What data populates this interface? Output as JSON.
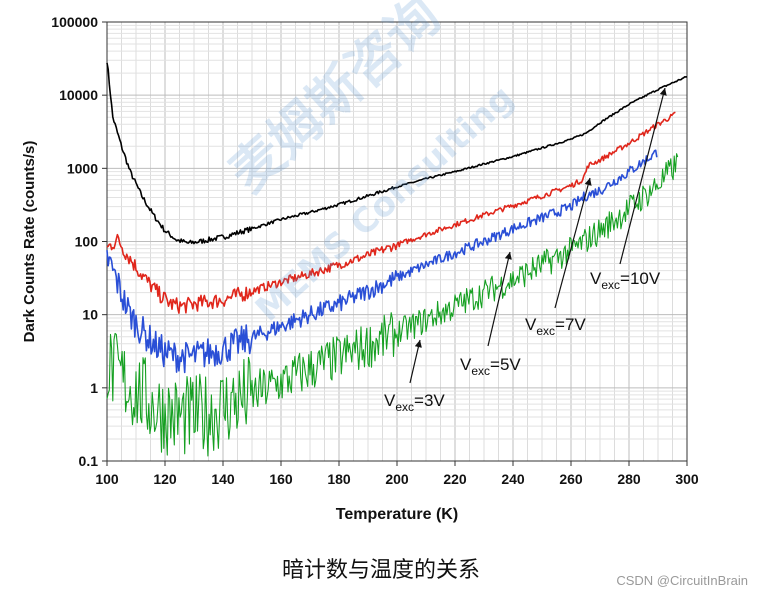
{
  "chart_data": {
    "type": "line",
    "title": "",
    "xlabel": "Temperature (K)",
    "ylabel": "Dark Counts Rate (counts/s)",
    "xlim": [
      100,
      300
    ],
    "ylim": [
      0.1,
      100000
    ],
    "yscale": "log",
    "grid": true,
    "x_ticks": [
      "100",
      "120",
      "140",
      "160",
      "180",
      "200",
      "220",
      "240",
      "260",
      "280",
      "300"
    ],
    "y_ticks": [
      "0.1",
      "1",
      "10",
      "100",
      "1000",
      "10000",
      "100000"
    ],
    "series": [
      {
        "name": "Vexc=10V",
        "color": "#000000",
        "x": [
          100,
          102,
          105,
          108,
          112,
          116,
          120,
          124,
          128,
          132,
          140,
          150,
          160,
          170,
          180,
          190,
          200,
          210,
          220,
          230,
          240,
          250,
          260,
          265,
          270,
          280,
          290,
          300
        ],
        "y": [
          30000,
          5000,
          2000,
          900,
          420,
          230,
          140,
          105,
          95,
          100,
          115,
          150,
          200,
          250,
          320,
          420,
          560,
          720,
          900,
          1150,
          1450,
          1900,
          2500,
          3000,
          4200,
          7500,
          12000,
          18000
        ]
      },
      {
        "name": "Vexc=7V",
        "color": "#e0261b",
        "x": [
          100,
          102,
          104,
          106,
          110,
          114,
          118,
          122,
          126,
          130,
          140,
          150,
          160,
          170,
          180,
          190,
          200,
          210,
          220,
          230,
          240,
          250,
          260,
          264,
          266,
          270,
          280,
          290,
          296
        ],
        "y": [
          80,
          95,
          105,
          75,
          45,
          28,
          19,
          14,
          13,
          14,
          16,
          21,
          28,
          36,
          48,
          65,
          90,
          125,
          170,
          230,
          310,
          420,
          580,
          700,
          1100,
          1300,
          2200,
          4000,
          5500
        ]
      },
      {
        "name": "Vexc=5V",
        "color": "#2a4fd6",
        "x": [
          100,
          102,
          104,
          106,
          108,
          112,
          116,
          120,
          124,
          128,
          132,
          140,
          150,
          160,
          170,
          180,
          190,
          200,
          210,
          220,
          230,
          240,
          250,
          260,
          265,
          270,
          280,
          290
        ],
        "y": [
          60,
          40,
          25,
          15,
          10,
          6,
          4,
          3,
          2.7,
          2.6,
          2.8,
          3.4,
          4.8,
          7,
          10,
          14,
          21,
          32,
          48,
          70,
          100,
          150,
          210,
          300,
          420,
          500,
          900,
          1700
        ]
      },
      {
        "name": "Vexc=3V",
        "color": "#16a022",
        "x": [
          100,
          104,
          108,
          112,
          116,
          120,
          124,
          128,
          132,
          136,
          140,
          150,
          160,
          170,
          180,
          190,
          200,
          210,
          220,
          230,
          240,
          250,
          260,
          270,
          280,
          290,
          297
        ],
        "y": [
          2,
          1.5,
          1,
          0.8,
          0.55,
          0.45,
          0.4,
          0.4,
          0.42,
          0.45,
          0.55,
          0.8,
          1.2,
          1.8,
          2.6,
          3.8,
          5.6,
          8.5,
          13,
          20,
          30,
          48,
          75,
          140,
          280,
          600,
          1200
        ]
      }
    ],
    "annotations": [
      {
        "main": "V",
        "sub": "exc",
        "value": "=10V"
      },
      {
        "main": "V",
        "sub": "exc",
        "value": "=7V"
      },
      {
        "main": "V",
        "sub": "exc",
        "value": "=5V"
      },
      {
        "main": "V",
        "sub": "exc",
        "value": "=3V"
      }
    ]
  },
  "watermark": {
    "text": "麦姆斯咨询",
    "subtext": "MEMS Consulting"
  },
  "caption": "暗计数与温度的关系",
  "credit": "CSDN @CircuitInBrain"
}
